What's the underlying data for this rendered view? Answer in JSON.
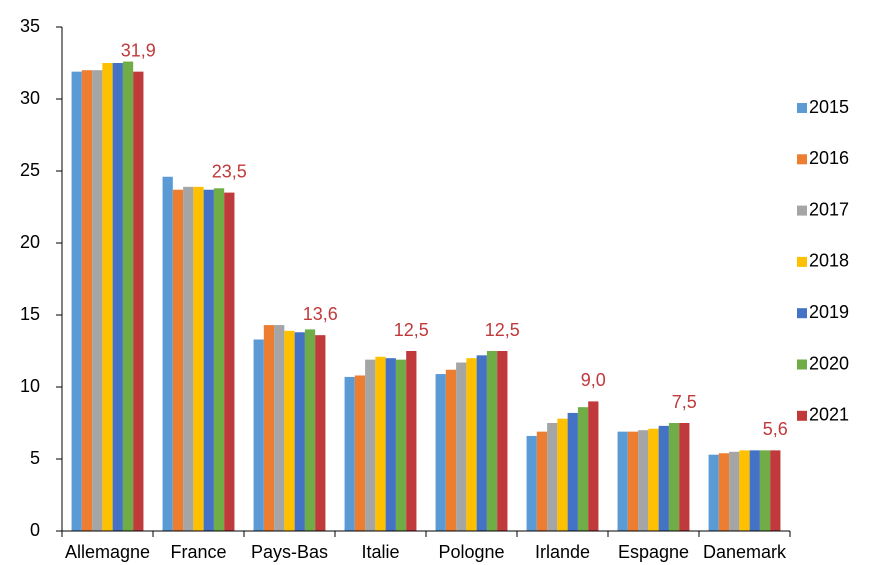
{
  "chart_data": {
    "type": "bar",
    "categories": [
      "Allemagne",
      "France",
      "Pays-Bas",
      "Italie",
      "Pologne",
      "Irlande",
      "Espagne",
      "Danemark"
    ],
    "series": [
      {
        "name": "2015",
        "color": "#5b9bd5",
        "values": [
          31.9,
          24.6,
          13.3,
          10.7,
          10.9,
          6.6,
          6.9,
          5.3
        ]
      },
      {
        "name": "2016",
        "color": "#ed7d31",
        "values": [
          32.0,
          23.7,
          14.3,
          10.8,
          11.2,
          6.9,
          6.9,
          5.4
        ]
      },
      {
        "name": "2017",
        "color": "#a5a5a5",
        "values": [
          32.0,
          23.9,
          14.3,
          11.9,
          11.7,
          7.5,
          7.0,
          5.5
        ]
      },
      {
        "name": "2018",
        "color": "#ffc000",
        "values": [
          32.5,
          23.9,
          13.9,
          12.1,
          12.0,
          7.8,
          7.1,
          5.6
        ]
      },
      {
        "name": "2019",
        "color": "#4472c4",
        "values": [
          32.5,
          23.7,
          13.8,
          12.0,
          12.2,
          8.2,
          7.3,
          5.6
        ]
      },
      {
        "name": "2020",
        "color": "#70ad47",
        "values": [
          32.6,
          23.8,
          14.0,
          11.9,
          12.5,
          8.6,
          7.5,
          5.6
        ]
      },
      {
        "name": "2021",
        "color": "#c0393b",
        "values": [
          31.9,
          23.5,
          13.6,
          12.5,
          12.5,
          9.0,
          7.5,
          5.6
        ],
        "value_labels": [
          "31,9",
          "23,5",
          "13,6",
          "12,5",
          "12,5",
          "9,0",
          "7,5",
          "5,6"
        ]
      }
    ],
    "ylim": [
      0,
      35
    ],
    "yticks": [
      0,
      5,
      10,
      15,
      20,
      25,
      30,
      35
    ],
    "grid": false,
    "legend": "right"
  }
}
